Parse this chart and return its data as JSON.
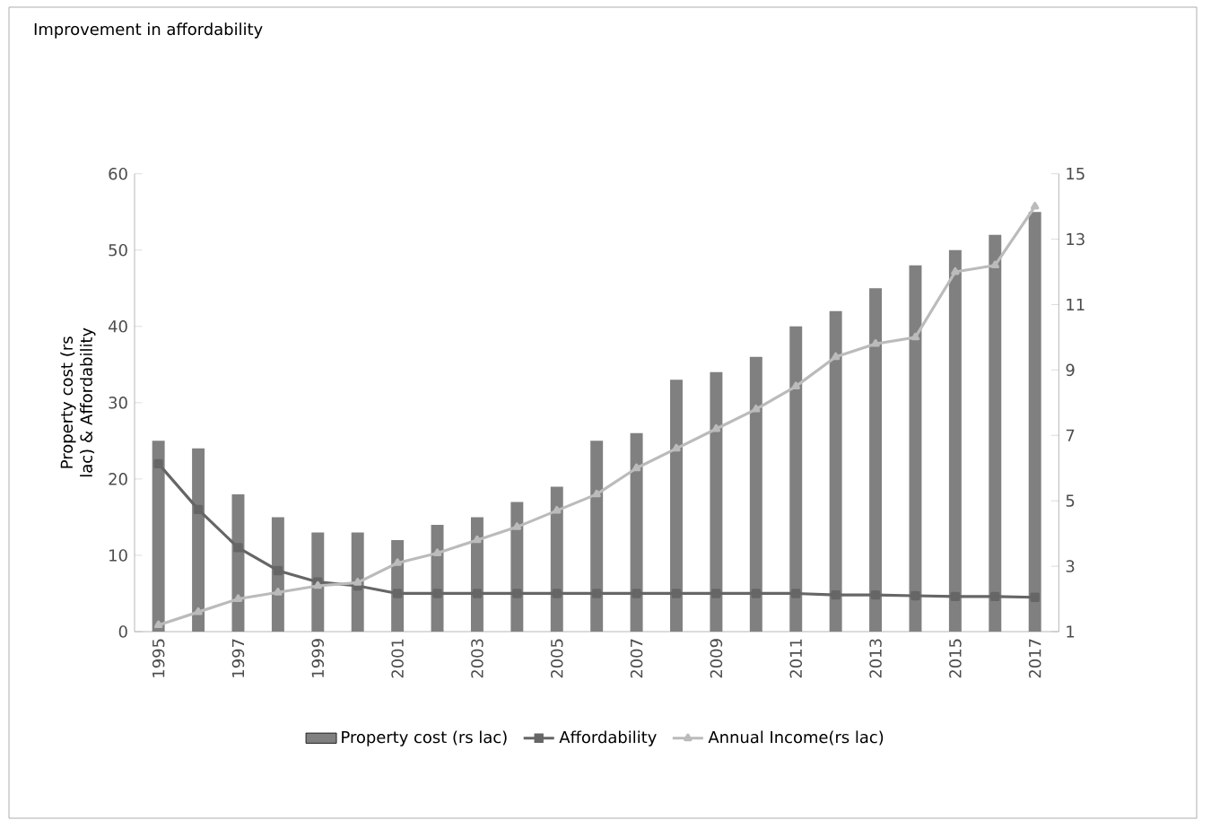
{
  "chart_data": {
    "type": "bar",
    "title": "Improvement in affordability",
    "ylabel": "Property cost (rs lac) & Affordability",
    "categories": [
      "1995",
      null,
      "1997",
      null,
      "1999",
      null,
      "2001",
      null,
      "2003",
      null,
      "2005",
      null,
      "2007",
      null,
      "2009",
      null,
      "2011",
      null,
      "2013",
      null,
      "2015",
      null,
      "2017"
    ],
    "series": [
      {
        "name": "Property cost (rs lac)",
        "color": "#808080",
        "values": [
          25,
          24,
          18,
          15,
          13,
          13,
          12,
          14,
          15,
          17,
          19,
          25,
          26,
          33,
          34,
          36,
          40,
          42,
          45,
          48,
          50,
          52,
          55
        ]
      },
      {
        "name": "Affordability",
        "type": "line",
        "color": "#666666",
        "marker": "square",
        "values": [
          22,
          16,
          11,
          8,
          6.5,
          6,
          5,
          5,
          5,
          5,
          5,
          5,
          5,
          5,
          5,
          5,
          5,
          4.8,
          4.8,
          4.7,
          4.6,
          4.6,
          4.5
        ]
      },
      {
        "name": "Annual Income(rs lac)",
        "type": "line",
        "color": "#bbbbbb",
        "marker": "triangle",
        "axis": "y2",
        "values": [
          1.2,
          1.6,
          2.0,
          2.2,
          2.4,
          2.5,
          3.1,
          3.4,
          3.8,
          4.2,
          4.7,
          5.2,
          6.0,
          6.6,
          7.2,
          7.8,
          8.5,
          9.4,
          9.8,
          10.0,
          12.0,
          12.2,
          14.0
        ]
      }
    ],
    "ylim": [
      0,
      60
    ],
    "yticks": [
      0,
      10,
      20,
      30,
      40,
      50,
      60
    ],
    "y2lim": [
      1,
      15
    ],
    "y2ticks": [
      1,
      3,
      5,
      7,
      9,
      11,
      13,
      15
    ],
    "grid": false,
    "legend": "bottom"
  }
}
